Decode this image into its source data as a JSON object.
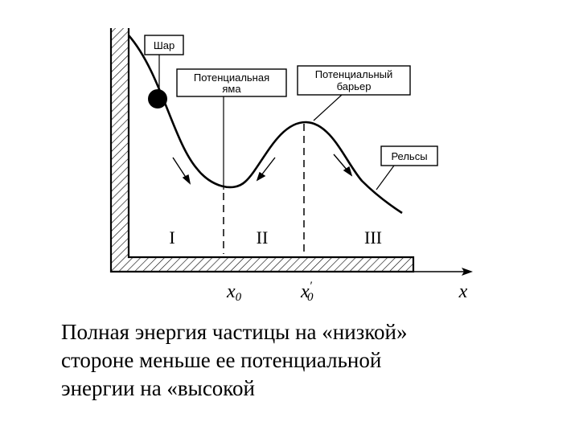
{
  "diagram": {
    "labels": {
      "ball": "Шар",
      "well_line1": "Потенциальная",
      "well_line2": "яма",
      "barrier_line1": "Потенциальный",
      "barrier_line2": "барьер",
      "rails": "Рельсы"
    },
    "regions": [
      "I",
      "II",
      "III"
    ],
    "axis": {
      "x_label": "x",
      "x0": "x",
      "x0_sub": "0",
      "x0prime": "x",
      "x0prime_mark": "′",
      "x0prime_sub": "0"
    }
  },
  "caption": {
    "line1": "Полная энергия частицы на «низкой»",
    "line2": "стороне меньше ее потенциальной",
    "line3": "энергии на «высокой"
  }
}
